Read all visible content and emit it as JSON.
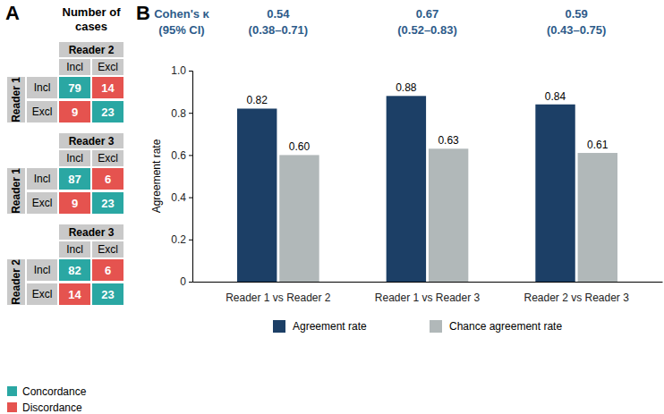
{
  "panel_a": {
    "label": "A",
    "heading": [
      "Number of",
      "cases"
    ],
    "tables": [
      {
        "row_reader": "Reader 1",
        "col_reader": "Reader 2",
        "row_labels": [
          "Incl",
          "Excl"
        ],
        "col_labels": [
          "Incl",
          "Excl"
        ],
        "cells": [
          [
            79,
            14
          ],
          [
            9,
            23
          ]
        ]
      },
      {
        "row_reader": "Reader 1",
        "col_reader": "Reader 3",
        "row_labels": [
          "Incl",
          "Excl"
        ],
        "col_labels": [
          "Incl",
          "Excl"
        ],
        "cells": [
          [
            87,
            6
          ],
          [
            9,
            23
          ]
        ]
      },
      {
        "row_reader": "Reader 2",
        "col_reader": "Reader 3",
        "row_labels": [
          "Incl",
          "Excl"
        ],
        "col_labels": [
          "Incl",
          "Excl"
        ],
        "cells": [
          [
            82,
            6
          ],
          [
            14,
            23
          ]
        ]
      }
    ],
    "legend": [
      {
        "name": "Concordance",
        "color": "#2aa7a3"
      },
      {
        "name": "Discordance",
        "color": "#e5534f"
      }
    ]
  },
  "chart_data": {
    "type": "bar",
    "panel_label": "B",
    "categories": [
      "Reader 1 vs Reader 2",
      "Reader 1 vs Reader 3",
      "Reader 2 vs Reader 3"
    ],
    "series": [
      {
        "name": "Agreement rate",
        "color": "#1c3f66",
        "values": [
          0.82,
          0.88,
          0.84
        ],
        "value_labels": [
          "0.82",
          "0.88",
          "0.84"
        ]
      },
      {
        "name": "Chance agreement rate",
        "color": "#b1b8b9",
        "values": [
          0.6,
          0.63,
          0.61
        ],
        "value_labels": [
          "0.60",
          "0.63",
          "0.61"
        ]
      }
    ],
    "y_label": "Agreement rate",
    "ylim": [
      0,
      1
    ],
    "yticks": [
      0,
      0.2,
      0.4,
      0.6,
      0.8,
      {
        "value": 1,
        "label": "1.0"
      }
    ],
    "data_labels": true,
    "legend": "bottom",
    "grid": false,
    "kappa_title": [
      "Cohen's κ",
      "(95% CI)"
    ],
    "kappa": [
      0.54,
      0.67,
      0.59
    ],
    "kappa_ci": [
      "(0.38–0.71)",
      "(0.52–0.83)",
      "(0.43–0.75)"
    ]
  }
}
